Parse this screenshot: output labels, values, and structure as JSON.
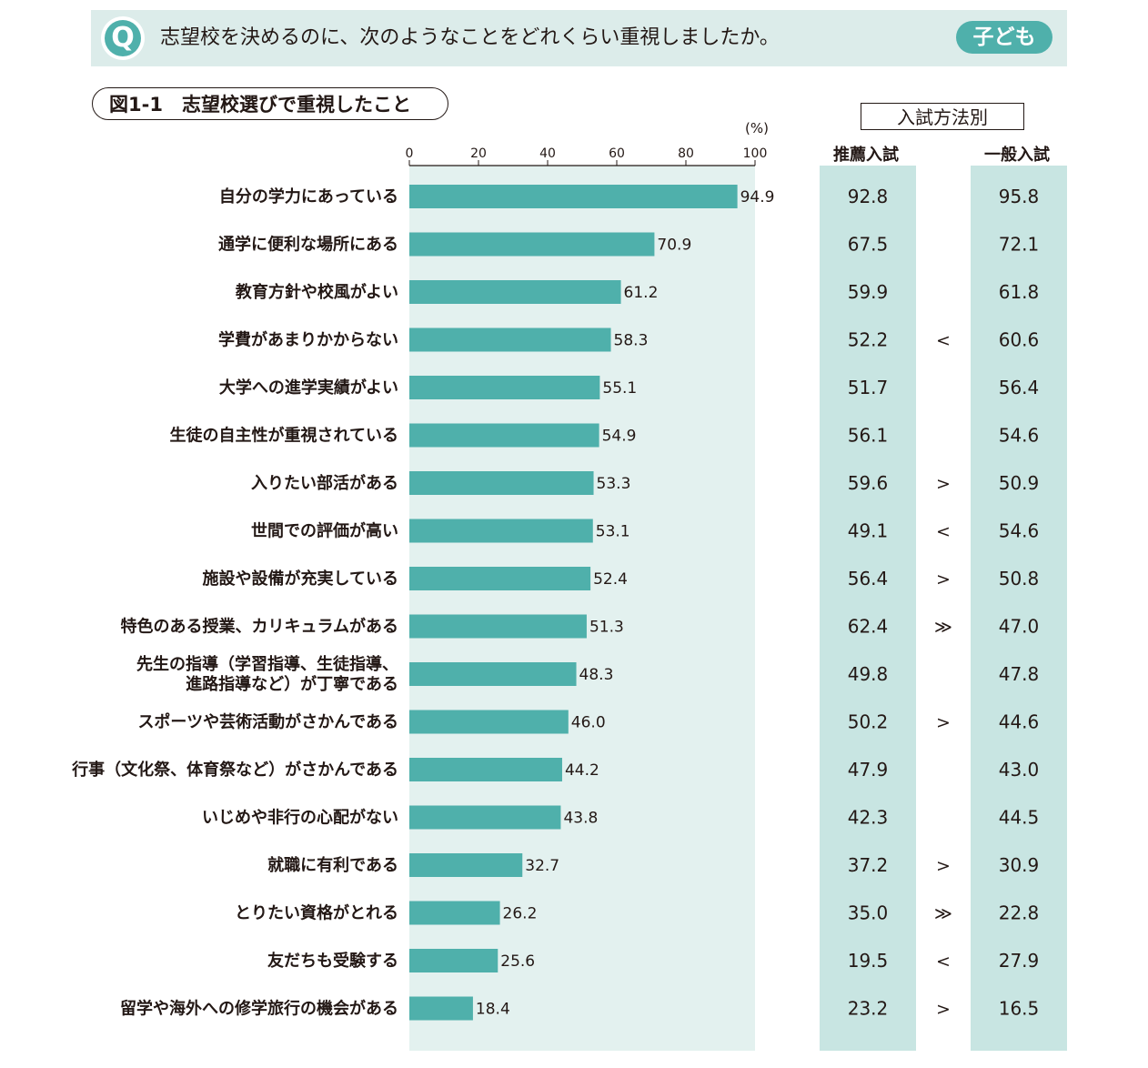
{
  "header": {
    "q_mark": "Q",
    "question": "志望校を決めるのに、次のようなことをどれくらい重視しましたか。",
    "badge": "子ども"
  },
  "figure": {
    "title": "図1-1　志望校選びで重視したこと",
    "method_label": "入試方法別",
    "col_recommend": "推薦入試",
    "col_general": "一般入試"
  },
  "colors": {
    "bar": "#4fb0ab",
    "plot_bg": "#e3f1ef",
    "column_bg": "#c8e5e2",
    "accent": "#4fb0ab"
  },
  "chart_data": {
    "type": "bar",
    "orientation": "horizontal",
    "unit_label": "(%)",
    "xlim": [
      0,
      100
    ],
    "ticks": [
      0,
      20,
      40,
      60,
      80,
      100
    ],
    "categories": [
      [
        "自分の学力にあっている"
      ],
      [
        "通学に便利な場所にある"
      ],
      [
        "教育方針や校風がよい"
      ],
      [
        "学費があまりかからない"
      ],
      [
        "大学への進学実績がよい"
      ],
      [
        "生徒の自主性が重視されている"
      ],
      [
        "入りたい部活がある"
      ],
      [
        "世間での評価が高い"
      ],
      [
        "施設や設備が充実している"
      ],
      [
        "特色のある授業、カリキュラムがある"
      ],
      [
        "先生の指導（学習指導、生徒指導、",
        "進路指導など）が丁寧である"
      ],
      [
        "スポーツや芸術活動がさかんである"
      ],
      [
        "行事（文化祭、体育祭など）がさかんである"
      ],
      [
        "いじめや非行の心配がない"
      ],
      [
        "就職に有利である"
      ],
      [
        "とりたい資格がとれる"
      ],
      [
        "友だちも受験する"
      ],
      [
        "留学や海外への修学旅行の機会がある"
      ]
    ],
    "values": [
      94.9,
      70.9,
      61.2,
      58.3,
      55.1,
      54.9,
      53.3,
      53.1,
      52.4,
      51.3,
      48.3,
      46.0,
      44.2,
      43.8,
      32.7,
      26.2,
      25.6,
      18.4
    ],
    "recommend": [
      92.8,
      67.5,
      59.9,
      52.2,
      51.7,
      56.1,
      59.6,
      49.1,
      56.4,
      62.4,
      49.8,
      50.2,
      47.9,
      42.3,
      37.2,
      35.0,
      19.5,
      23.2
    ],
    "compare": [
      "",
      "",
      "",
      "<",
      "",
      "",
      ">",
      "<",
      ">",
      "≫",
      "",
      ">",
      "",
      "",
      ">",
      "≫",
      "<",
      ">"
    ],
    "general": [
      95.8,
      72.1,
      61.8,
      60.6,
      56.4,
      54.6,
      50.9,
      54.6,
      50.8,
      47.0,
      47.8,
      44.6,
      43.0,
      44.5,
      30.9,
      22.8,
      27.9,
      16.5
    ]
  }
}
